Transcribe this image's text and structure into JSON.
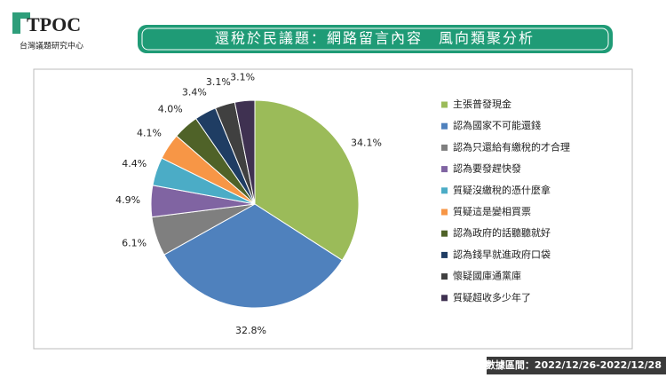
{
  "header": {
    "logo": "TPOC",
    "org": "台灣議題研究中心"
  },
  "chart_data": {
    "type": "pie",
    "title": "還稅於民議題：網路留言內容　風向類聚分析",
    "categories": [
      "主張普發現金",
      "認為國家不可能還錢",
      "認為只還給有繳稅的才合理",
      "認為要發趕快發",
      "質疑沒繳稅的憑什麼拿",
      "質疑這是變相買票",
      "認為政府的話聽聽就好",
      "認為錢早就進政府口袋",
      "懷疑國庫通黨庫",
      "質疑超收多少年了"
    ],
    "values": [
      34.1,
      32.8,
      6.1,
      4.9,
      4.4,
      4.1,
      4.0,
      3.4,
      3.1,
      3.1
    ],
    "value_labels": [
      "34.1%",
      "32.8%",
      "6.1%",
      "4.9%",
      "4.4%",
      "4.1%",
      "4.0%",
      "3.4%",
      "3.1%",
      "3.1%"
    ],
    "colors": [
      "#9bbb59",
      "#4f81bd",
      "#7f7f7f",
      "#8064a2",
      "#4bacc6",
      "#f79646",
      "#4f6228",
      "#1f3d63",
      "#404040",
      "#3f3151"
    ],
    "legend": "right"
  },
  "footer": {
    "range": "數據區間：2022/12/26-2022/12/28"
  }
}
